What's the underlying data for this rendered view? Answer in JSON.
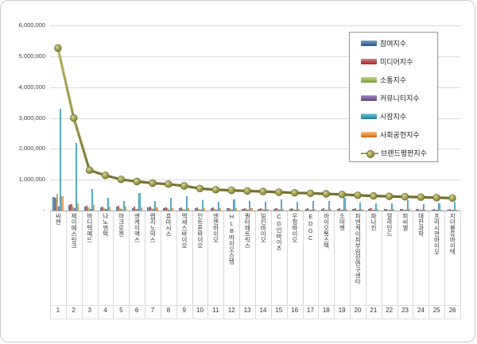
{
  "chart_data": {
    "type": "bar+line combo",
    "title": "",
    "xlabel": "",
    "ylabel": "",
    "ylim": [
      0,
      6200000
    ],
    "grid": "horizontal",
    "legend_position": "upper right inside plot",
    "yticks": {
      "values": [
        0,
        1000000,
        2000000,
        3000000,
        4000000,
        5000000,
        6000000
      ],
      "labels": [
        "-",
        "1,000,000",
        "2,000,000",
        "3,000,000",
        "4,000,000",
        "5,000,000",
        "6,000,000"
      ]
    },
    "categories": [
      "씨젠",
      "제이에스링크",
      "바디텍메드",
      "나노엔텍",
      "마크로젠",
      "엔케이맥스",
      "랩지노믹스",
      "휴마시스",
      "엑세스바이오",
      "인트론바이오",
      "엔젠바이오",
      "HLB바이오스텝",
      "퀀타매트릭스",
      "일신바이오",
      "CG인바이츠",
      "우정바이오",
      "EDGC",
      "바이오톡스텍",
      "소마젠",
      "피엔케이피부임상연구센타",
      "파나진",
      "얼라인드",
      "피씨엘",
      "대한과학",
      "프리시젼바이오",
      "지더블유바이텍"
    ],
    "ranks": [
      1,
      2,
      3,
      4,
      5,
      6,
      7,
      8,
      9,
      10,
      11,
      12,
      13,
      14,
      15,
      16,
      17,
      18,
      19,
      20,
      21,
      22,
      23,
      24,
      25,
      26
    ],
    "series": [
      {
        "name": "참여지수",
        "type": "bar",
        "color": "#4573A7",
        "color_light": "#7BA0C9",
        "color_dark": "#2F5579",
        "values": [
          430000,
          170000,
          130000,
          110000,
          120000,
          90000,
          100000,
          90000,
          80000,
          75000,
          70000,
          65000,
          62000,
          60000,
          58000,
          55000,
          54000,
          52000,
          50000,
          48000,
          46000,
          44000,
          42000,
          40000,
          38000,
          36000
        ]
      },
      {
        "name": "미디어지수",
        "type": "bar",
        "color": "#BE4B48",
        "color_light": "#D98380",
        "color_dark": "#8E332F",
        "values": [
          410000,
          200000,
          160000,
          140000,
          150000,
          120000,
          130000,
          115000,
          105000,
          100000,
          95000,
          90000,
          88000,
          85000,
          82000,
          78000,
          76000,
          74000,
          70000,
          68000,
          65000,
          62000,
          60000,
          58000,
          55000,
          52000
        ]
      },
      {
        "name": "소통지수",
        "type": "bar",
        "color": "#9BBB59",
        "color_light": "#BCD488",
        "color_dark": "#74913C",
        "values": [
          530000,
          120000,
          95000,
          80000,
          90000,
          60000,
          70000,
          65000,
          60000,
          55000,
          50000,
          48000,
          46000,
          44000,
          42000,
          40000,
          38000,
          36000,
          35000,
          33000,
          32000,
          30000,
          29000,
          28000,
          26000,
          25000
        ]
      },
      {
        "name": "커뮤니티지수",
        "type": "bar",
        "color": "#8064A2",
        "color_light": "#A48BC0",
        "color_dark": "#5E4880",
        "values": [
          140000,
          70000,
          55000,
          45000,
          50000,
          40000,
          40000,
          35000,
          30000,
          30000,
          28000,
          26000,
          24000,
          22000,
          22000,
          20000,
          20000,
          18000,
          18000,
          16000,
          16000,
          15000,
          14000,
          13000,
          12000,
          12000
        ]
      },
      {
        "name": "시장지수",
        "type": "bar",
        "color": "#3E9FBC",
        "color_light": "#7CC6DC",
        "color_dark": "#2A7590",
        "values": [
          3300000,
          2200000,
          700000,
          400000,
          310000,
          570000,
          310000,
          420000,
          470000,
          330000,
          290000,
          370000,
          310000,
          290000,
          370000,
          280000,
          300000,
          320000,
          420000,
          260000,
          240000,
          230000,
          330000,
          210000,
          230000,
          290000
        ]
      },
      {
        "name": "사회공헌지수",
        "type": "bar",
        "color": "#E9913F",
        "color_light": "#F5B97E",
        "color_dark": "#C06C20",
        "values": [
          460000,
          240000,
          170000,
          130000,
          140000,
          100000,
          100000,
          90000,
          85000,
          80000,
          75000,
          70000,
          66000,
          62000,
          60000,
          58000,
          55000,
          52000,
          50000,
          48000,
          45000,
          42000,
          40000,
          38000,
          36000,
          34000
        ]
      },
      {
        "name": "브랜드평판지수",
        "type": "line",
        "color": "#9C9B4F",
        "color_light": "#D8D78F",
        "color_dark": "#6F6E2D",
        "values": [
          5270000,
          3000000,
          1310000,
          1140000,
          1010000,
          940000,
          890000,
          855000,
          800000,
          715000,
          675000,
          655000,
          635000,
          615000,
          595000,
          575000,
          558000,
          540000,
          520000,
          495000,
          475000,
          458000,
          446000,
          432000,
          418000,
          405000
        ]
      }
    ]
  }
}
